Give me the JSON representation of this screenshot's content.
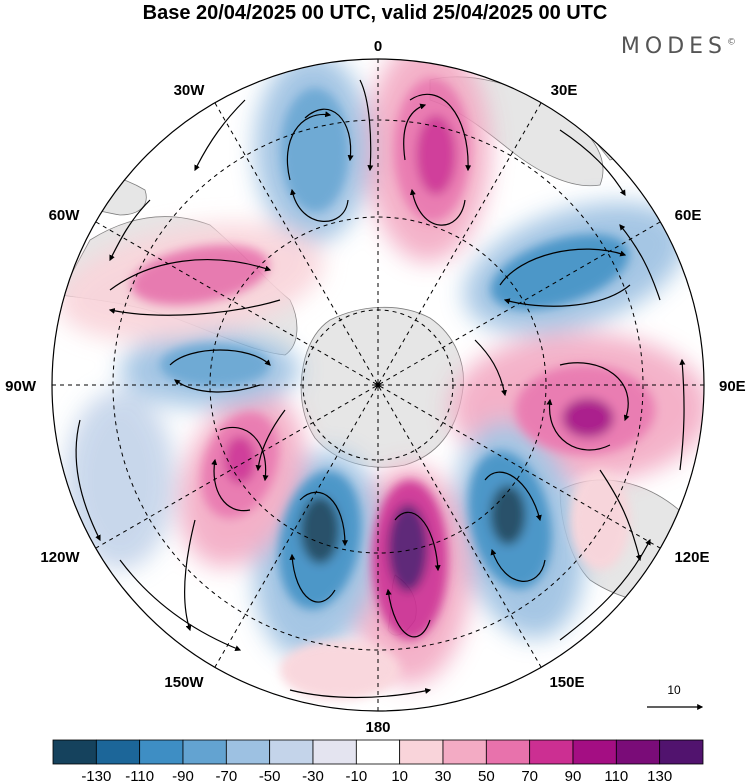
{
  "title": "Base 20/04/2025 00 UTC, valid 25/04/2025 00 UTC",
  "brand": "MODES",
  "brand_mark": "©",
  "lon_labels": {
    "l0": "0",
    "l30e": "30E",
    "l60e": "60E",
    "l90e": "90E",
    "l120e": "120E",
    "l150e": "150E",
    "l180": "180",
    "l150w": "150W",
    "l120w": "120W",
    "l90w": "90W",
    "l60w": "60W",
    "l30w": "30W"
  },
  "colorbar": {
    "labels": [
      "-130",
      "-110",
      "-90",
      "-70",
      "-50",
      "-30",
      "-10",
      "10",
      "30",
      "50",
      "70",
      "90",
      "110",
      "130"
    ],
    "colors": [
      "#15425d",
      "#1c6699",
      "#3e8ec4",
      "#63a3d1",
      "#9dc1e2",
      "#c4d4ea",
      "#e4e4f0",
      "#ffffff",
      "#f9d4da",
      "#f3abc4",
      "#e872ac",
      "#cc2f92",
      "#a40e83",
      "#7a0c78",
      "#51136e"
    ]
  },
  "vector_reference": "10",
  "colors": {
    "land": "#e8e8e8",
    "coast": "#808080",
    "grid": "#000000"
  }
}
